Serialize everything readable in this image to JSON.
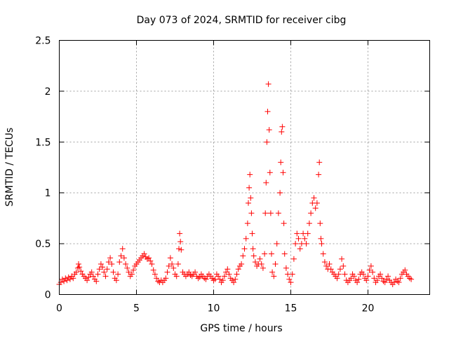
{
  "chart_data": {
    "type": "scatter",
    "title": "Day 073 of 2024, SRMTID for receiver cibg",
    "xlabel": "GPS time / hours",
    "ylabel": "SRMTID / TECUs",
    "xlim": [
      0,
      24
    ],
    "ylim": [
      0,
      2.5
    ],
    "xticks": [
      0,
      5,
      10,
      15,
      20
    ],
    "xtick_labels": [
      "0",
      "5",
      "10",
      "15",
      "20"
    ],
    "yticks": [
      0,
      0.5,
      1,
      1.5,
      2,
      2.5
    ],
    "ytick_labels": [
      "0",
      "0.5",
      "1",
      "1.5",
      "2",
      "2.5"
    ],
    "grid": true,
    "marker": "plus",
    "color": "#ff0000",
    "series": [
      {
        "name": "SRMTID",
        "points": [
          [
            0.0,
            0.1
          ],
          [
            0.1,
            0.12
          ],
          [
            0.2,
            0.15
          ],
          [
            0.3,
            0.13
          ],
          [
            0.4,
            0.16
          ],
          [
            0.5,
            0.14
          ],
          [
            0.6,
            0.17
          ],
          [
            0.7,
            0.15
          ],
          [
            0.8,
            0.18
          ],
          [
            0.9,
            0.16
          ],
          [
            1.0,
            0.2
          ],
          [
            1.1,
            0.22
          ],
          [
            1.2,
            0.26
          ],
          [
            1.25,
            0.3
          ],
          [
            1.3,
            0.27
          ],
          [
            1.4,
            0.23
          ],
          [
            1.5,
            0.2
          ],
          [
            1.6,
            0.18
          ],
          [
            1.7,
            0.16
          ],
          [
            1.8,
            0.14
          ],
          [
            1.9,
            0.17
          ],
          [
            2.0,
            0.2
          ],
          [
            2.1,
            0.22
          ],
          [
            2.2,
            0.18
          ],
          [
            2.3,
            0.15
          ],
          [
            2.4,
            0.13
          ],
          [
            2.5,
            0.2
          ],
          [
            2.6,
            0.25
          ],
          [
            2.7,
            0.3
          ],
          [
            2.8,
            0.27
          ],
          [
            2.9,
            0.22
          ],
          [
            3.0,
            0.18
          ],
          [
            3.1,
            0.25
          ],
          [
            3.2,
            0.32
          ],
          [
            3.3,
            0.36
          ],
          [
            3.4,
            0.3
          ],
          [
            3.5,
            0.22
          ],
          [
            3.6,
            0.16
          ],
          [
            3.7,
            0.14
          ],
          [
            3.8,
            0.2
          ],
          [
            3.9,
            0.32
          ],
          [
            4.0,
            0.38
          ],
          [
            4.1,
            0.45
          ],
          [
            4.2,
            0.36
          ],
          [
            4.3,
            0.3
          ],
          [
            4.4,
            0.26
          ],
          [
            4.5,
            0.22
          ],
          [
            4.6,
            0.18
          ],
          [
            4.7,
            0.2
          ],
          [
            4.8,
            0.24
          ],
          [
            4.9,
            0.28
          ],
          [
            5.0,
            0.3
          ],
          [
            5.1,
            0.32
          ],
          [
            5.2,
            0.34
          ],
          [
            5.3,
            0.36
          ],
          [
            5.4,
            0.38
          ],
          [
            5.5,
            0.4
          ],
          [
            5.6,
            0.37
          ],
          [
            5.7,
            0.35
          ],
          [
            5.8,
            0.36
          ],
          [
            5.9,
            0.33
          ],
          [
            6.0,
            0.3
          ],
          [
            6.1,
            0.24
          ],
          [
            6.2,
            0.2
          ],
          [
            6.3,
            0.16
          ],
          [
            6.4,
            0.13
          ],
          [
            6.5,
            0.12
          ],
          [
            6.6,
            0.14
          ],
          [
            6.7,
            0.12
          ],
          [
            6.8,
            0.14
          ],
          [
            6.9,
            0.16
          ],
          [
            7.0,
            0.22
          ],
          [
            7.1,
            0.28
          ],
          [
            7.2,
            0.36
          ],
          [
            7.3,
            0.3
          ],
          [
            7.4,
            0.26
          ],
          [
            7.5,
            0.2
          ],
          [
            7.6,
            0.18
          ],
          [
            7.7,
            0.3
          ],
          [
            7.75,
            0.45
          ],
          [
            7.8,
            0.6
          ],
          [
            7.85,
            0.52
          ],
          [
            7.9,
            0.44
          ],
          [
            8.0,
            0.22
          ],
          [
            8.1,
            0.2
          ],
          [
            8.2,
            0.18
          ],
          [
            8.3,
            0.2
          ],
          [
            8.4,
            0.22
          ],
          [
            8.5,
            0.19
          ],
          [
            8.6,
            0.18
          ],
          [
            8.7,
            0.2
          ],
          [
            8.8,
            0.22
          ],
          [
            8.9,
            0.18
          ],
          [
            9.0,
            0.16
          ],
          [
            9.1,
            0.17
          ],
          [
            9.2,
            0.2
          ],
          [
            9.3,
            0.18
          ],
          [
            9.4,
            0.16
          ],
          [
            9.5,
            0.15
          ],
          [
            9.6,
            0.18
          ],
          [
            9.7,
            0.2
          ],
          [
            9.8,
            0.18
          ],
          [
            9.9,
            0.16
          ],
          [
            10.0,
            0.14
          ],
          [
            10.1,
            0.15
          ],
          [
            10.2,
            0.2
          ],
          [
            10.3,
            0.18
          ],
          [
            10.4,
            0.15
          ],
          [
            10.5,
            0.12
          ],
          [
            10.6,
            0.14
          ],
          [
            10.7,
            0.18
          ],
          [
            10.8,
            0.22
          ],
          [
            10.9,
            0.25
          ],
          [
            11.0,
            0.2
          ],
          [
            11.1,
            0.16
          ],
          [
            11.2,
            0.14
          ],
          [
            11.3,
            0.12
          ],
          [
            11.4,
            0.15
          ],
          [
            11.5,
            0.2
          ],
          [
            11.6,
            0.25
          ],
          [
            11.7,
            0.28
          ],
          [
            11.8,
            0.3
          ],
          [
            11.9,
            0.38
          ],
          [
            12.0,
            0.45
          ],
          [
            12.1,
            0.55
          ],
          [
            12.2,
            0.7
          ],
          [
            12.25,
            0.9
          ],
          [
            12.3,
            1.05
          ],
          [
            12.35,
            1.18
          ],
          [
            12.4,
            0.95
          ],
          [
            12.45,
            0.8
          ],
          [
            12.5,
            0.6
          ],
          [
            12.55,
            0.45
          ],
          [
            12.6,
            0.38
          ],
          [
            12.7,
            0.32
          ],
          [
            12.8,
            0.28
          ],
          [
            12.9,
            0.3
          ],
          [
            13.0,
            0.35
          ],
          [
            13.1,
            0.3
          ],
          [
            13.2,
            0.26
          ],
          [
            13.3,
            0.4
          ],
          [
            13.35,
            0.8
          ],
          [
            13.4,
            1.1
          ],
          [
            13.45,
            1.5
          ],
          [
            13.5,
            1.8
          ],
          [
            13.55,
            2.07
          ],
          [
            13.6,
            1.62
          ],
          [
            13.65,
            1.2
          ],
          [
            13.7,
            0.8
          ],
          [
            13.75,
            0.4
          ],
          [
            13.8,
            0.22
          ],
          [
            13.9,
            0.18
          ],
          [
            14.0,
            0.3
          ],
          [
            14.1,
            0.5
          ],
          [
            14.2,
            0.8
          ],
          [
            14.3,
            1.0
          ],
          [
            14.35,
            1.3
          ],
          [
            14.4,
            1.6
          ],
          [
            14.45,
            1.65
          ],
          [
            14.5,
            1.2
          ],
          [
            14.55,
            0.7
          ],
          [
            14.6,
            0.4
          ],
          [
            14.7,
            0.26
          ],
          [
            14.8,
            0.2
          ],
          [
            14.9,
            0.15
          ],
          [
            15.0,
            0.12
          ],
          [
            15.1,
            0.2
          ],
          [
            15.2,
            0.35
          ],
          [
            15.3,
            0.5
          ],
          [
            15.4,
            0.6
          ],
          [
            15.5,
            0.55
          ],
          [
            15.6,
            0.45
          ],
          [
            15.7,
            0.5
          ],
          [
            15.8,
            0.6
          ],
          [
            15.9,
            0.55
          ],
          [
            16.0,
            0.5
          ],
          [
            16.1,
            0.6
          ],
          [
            16.2,
            0.7
          ],
          [
            16.3,
            0.8
          ],
          [
            16.4,
            0.9
          ],
          [
            16.5,
            0.95
          ],
          [
            16.6,
            0.85
          ],
          [
            16.7,
            0.9
          ],
          [
            16.8,
            1.18
          ],
          [
            16.85,
            1.3
          ],
          [
            16.9,
            0.7
          ],
          [
            16.95,
            0.55
          ],
          [
            17.0,
            0.5
          ],
          [
            17.1,
            0.4
          ],
          [
            17.2,
            0.32
          ],
          [
            17.3,
            0.28
          ],
          [
            17.4,
            0.25
          ],
          [
            17.5,
            0.3
          ],
          [
            17.6,
            0.25
          ],
          [
            17.7,
            0.22
          ],
          [
            17.8,
            0.2
          ],
          [
            17.9,
            0.18
          ],
          [
            18.0,
            0.16
          ],
          [
            18.1,
            0.2
          ],
          [
            18.2,
            0.25
          ],
          [
            18.3,
            0.35
          ],
          [
            18.4,
            0.28
          ],
          [
            18.5,
            0.2
          ],
          [
            18.6,
            0.14
          ],
          [
            18.7,
            0.12
          ],
          [
            18.8,
            0.14
          ],
          [
            18.9,
            0.16
          ],
          [
            19.0,
            0.2
          ],
          [
            19.1,
            0.18
          ],
          [
            19.2,
            0.14
          ],
          [
            19.3,
            0.12
          ],
          [
            19.4,
            0.15
          ],
          [
            19.5,
            0.2
          ],
          [
            19.6,
            0.22
          ],
          [
            19.7,
            0.2
          ],
          [
            19.8,
            0.16
          ],
          [
            19.9,
            0.14
          ],
          [
            20.0,
            0.18
          ],
          [
            20.1,
            0.24
          ],
          [
            20.2,
            0.28
          ],
          [
            20.3,
            0.22
          ],
          [
            20.4,
            0.16
          ],
          [
            20.5,
            0.12
          ],
          [
            20.6,
            0.14
          ],
          [
            20.7,
            0.18
          ],
          [
            20.8,
            0.2
          ],
          [
            20.9,
            0.16
          ],
          [
            21.0,
            0.13
          ],
          [
            21.1,
            0.12
          ],
          [
            21.2,
            0.15
          ],
          [
            21.3,
            0.18
          ],
          [
            21.4,
            0.14
          ],
          [
            21.5,
            0.12
          ],
          [
            21.6,
            0.1
          ],
          [
            21.7,
            0.12
          ],
          [
            21.8,
            0.15
          ],
          [
            21.9,
            0.13
          ],
          [
            22.0,
            0.12
          ],
          [
            22.1,
            0.16
          ],
          [
            22.2,
            0.2
          ],
          [
            22.3,
            0.22
          ],
          [
            22.4,
            0.24
          ],
          [
            22.5,
            0.2
          ],
          [
            22.6,
            0.18
          ],
          [
            22.7,
            0.16
          ],
          [
            22.8,
            0.15
          ]
        ]
      }
    ]
  }
}
